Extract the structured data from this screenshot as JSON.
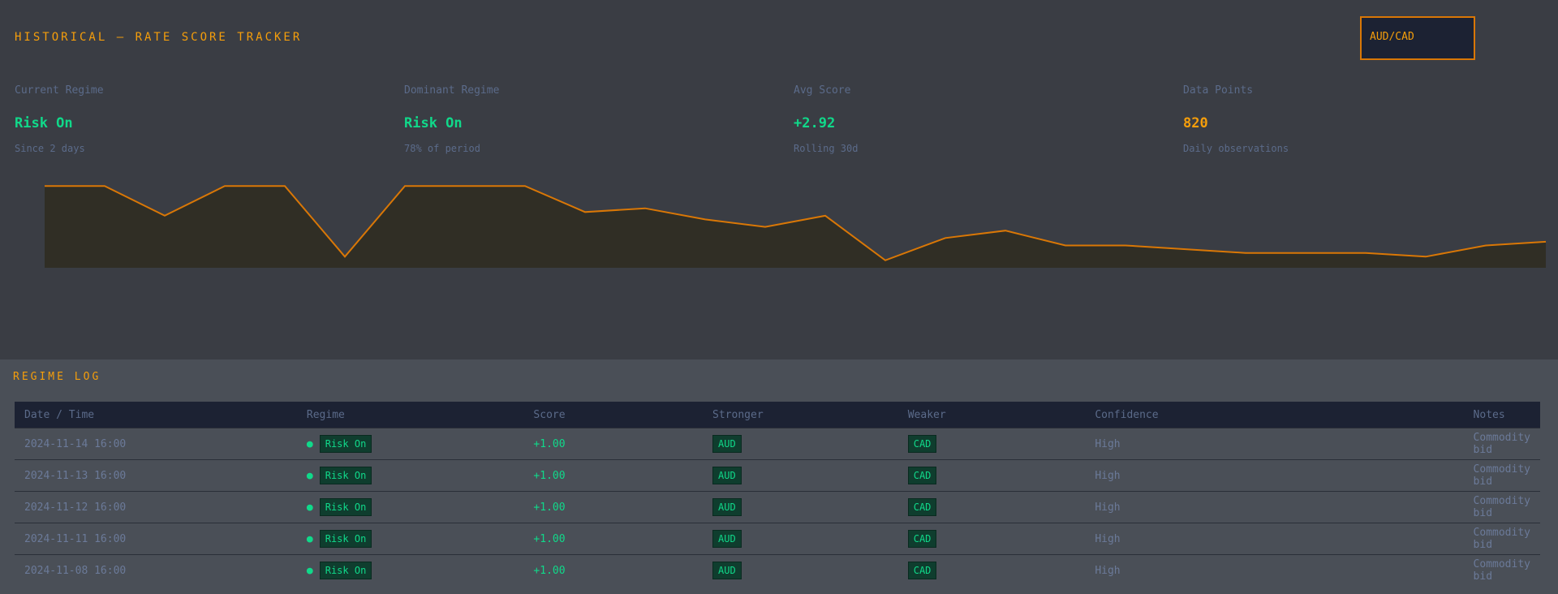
{
  "header": {
    "title": "HISTORICAL — RATE SCORE TRACKER",
    "pair_selector": "AUD/CAD"
  },
  "stats": [
    {
      "label": "Current Regime",
      "value": "Risk On",
      "sub": "Since 2 days",
      "color": "#10d98a"
    },
    {
      "label": "Dominant Regime",
      "value": "Risk On",
      "sub": "78% of period",
      "color": "#10d98a"
    },
    {
      "label": "Avg Score",
      "value": "+2.92",
      "sub": "Rolling 30d",
      "color": "#10d98a"
    },
    {
      "label": "Data Points",
      "value": "820",
      "sub": "Daily observations",
      "color": "#f59e0b"
    }
  ],
  "chart_data": {
    "type": "line",
    "x": [
      0,
      4,
      8,
      12,
      16,
      20,
      24,
      28,
      32,
      36,
      40,
      44,
      48,
      52,
      56,
      60,
      64,
      68,
      72,
      76,
      80,
      84,
      88,
      92,
      96,
      100
    ],
    "series": [
      {
        "values": [
          1.0,
          1.0,
          0.2,
          1.0,
          1.0,
          -0.9,
          1.0,
          1.0,
          1.0,
          0.3,
          0.4,
          0.1,
          -0.1,
          0.2,
          -1.0,
          -0.4,
          -0.2,
          -0.6,
          -0.6,
          -0.7,
          -0.8,
          -0.8,
          -0.8,
          -0.9,
          -0.6,
          -0.5
        ]
      }
    ],
    "ylim": [
      -1.2,
      1.2
    ],
    "color": "#d97706"
  },
  "table": {
    "section_title": "REGIME LOG",
    "columns": [
      "Date / Time",
      "Regime",
      "Score",
      "Stronger",
      "Weaker",
      "Confidence",
      "Notes"
    ],
    "rows": [
      {
        "date": "2024-11-14 16:00",
        "regime": "Risk On",
        "score": "+1.00",
        "stronger": "AUD",
        "weaker": "CAD",
        "confidence": "High",
        "notes": "Commodity bid"
      },
      {
        "date": "2024-11-13 16:00",
        "regime": "Risk On",
        "score": "+1.00",
        "stronger": "AUD",
        "weaker": "CAD",
        "confidence": "High",
        "notes": "Commodity bid"
      },
      {
        "date": "2024-11-12 16:00",
        "regime": "Risk On",
        "score": "+1.00",
        "stronger": "AUD",
        "weaker": "CAD",
        "confidence": "High",
        "notes": "Commodity bid"
      },
      {
        "date": "2024-11-11 16:00",
        "regime": "Risk On",
        "score": "+1.00",
        "stronger": "AUD",
        "weaker": "CAD",
        "confidence": "High",
        "notes": "Commodity bid"
      },
      {
        "date": "2024-11-08 16:00",
        "regime": "Risk On",
        "score": "+1.00",
        "stronger": "AUD",
        "weaker": "CAD",
        "confidence": "High",
        "notes": "Commodity bid"
      }
    ]
  }
}
